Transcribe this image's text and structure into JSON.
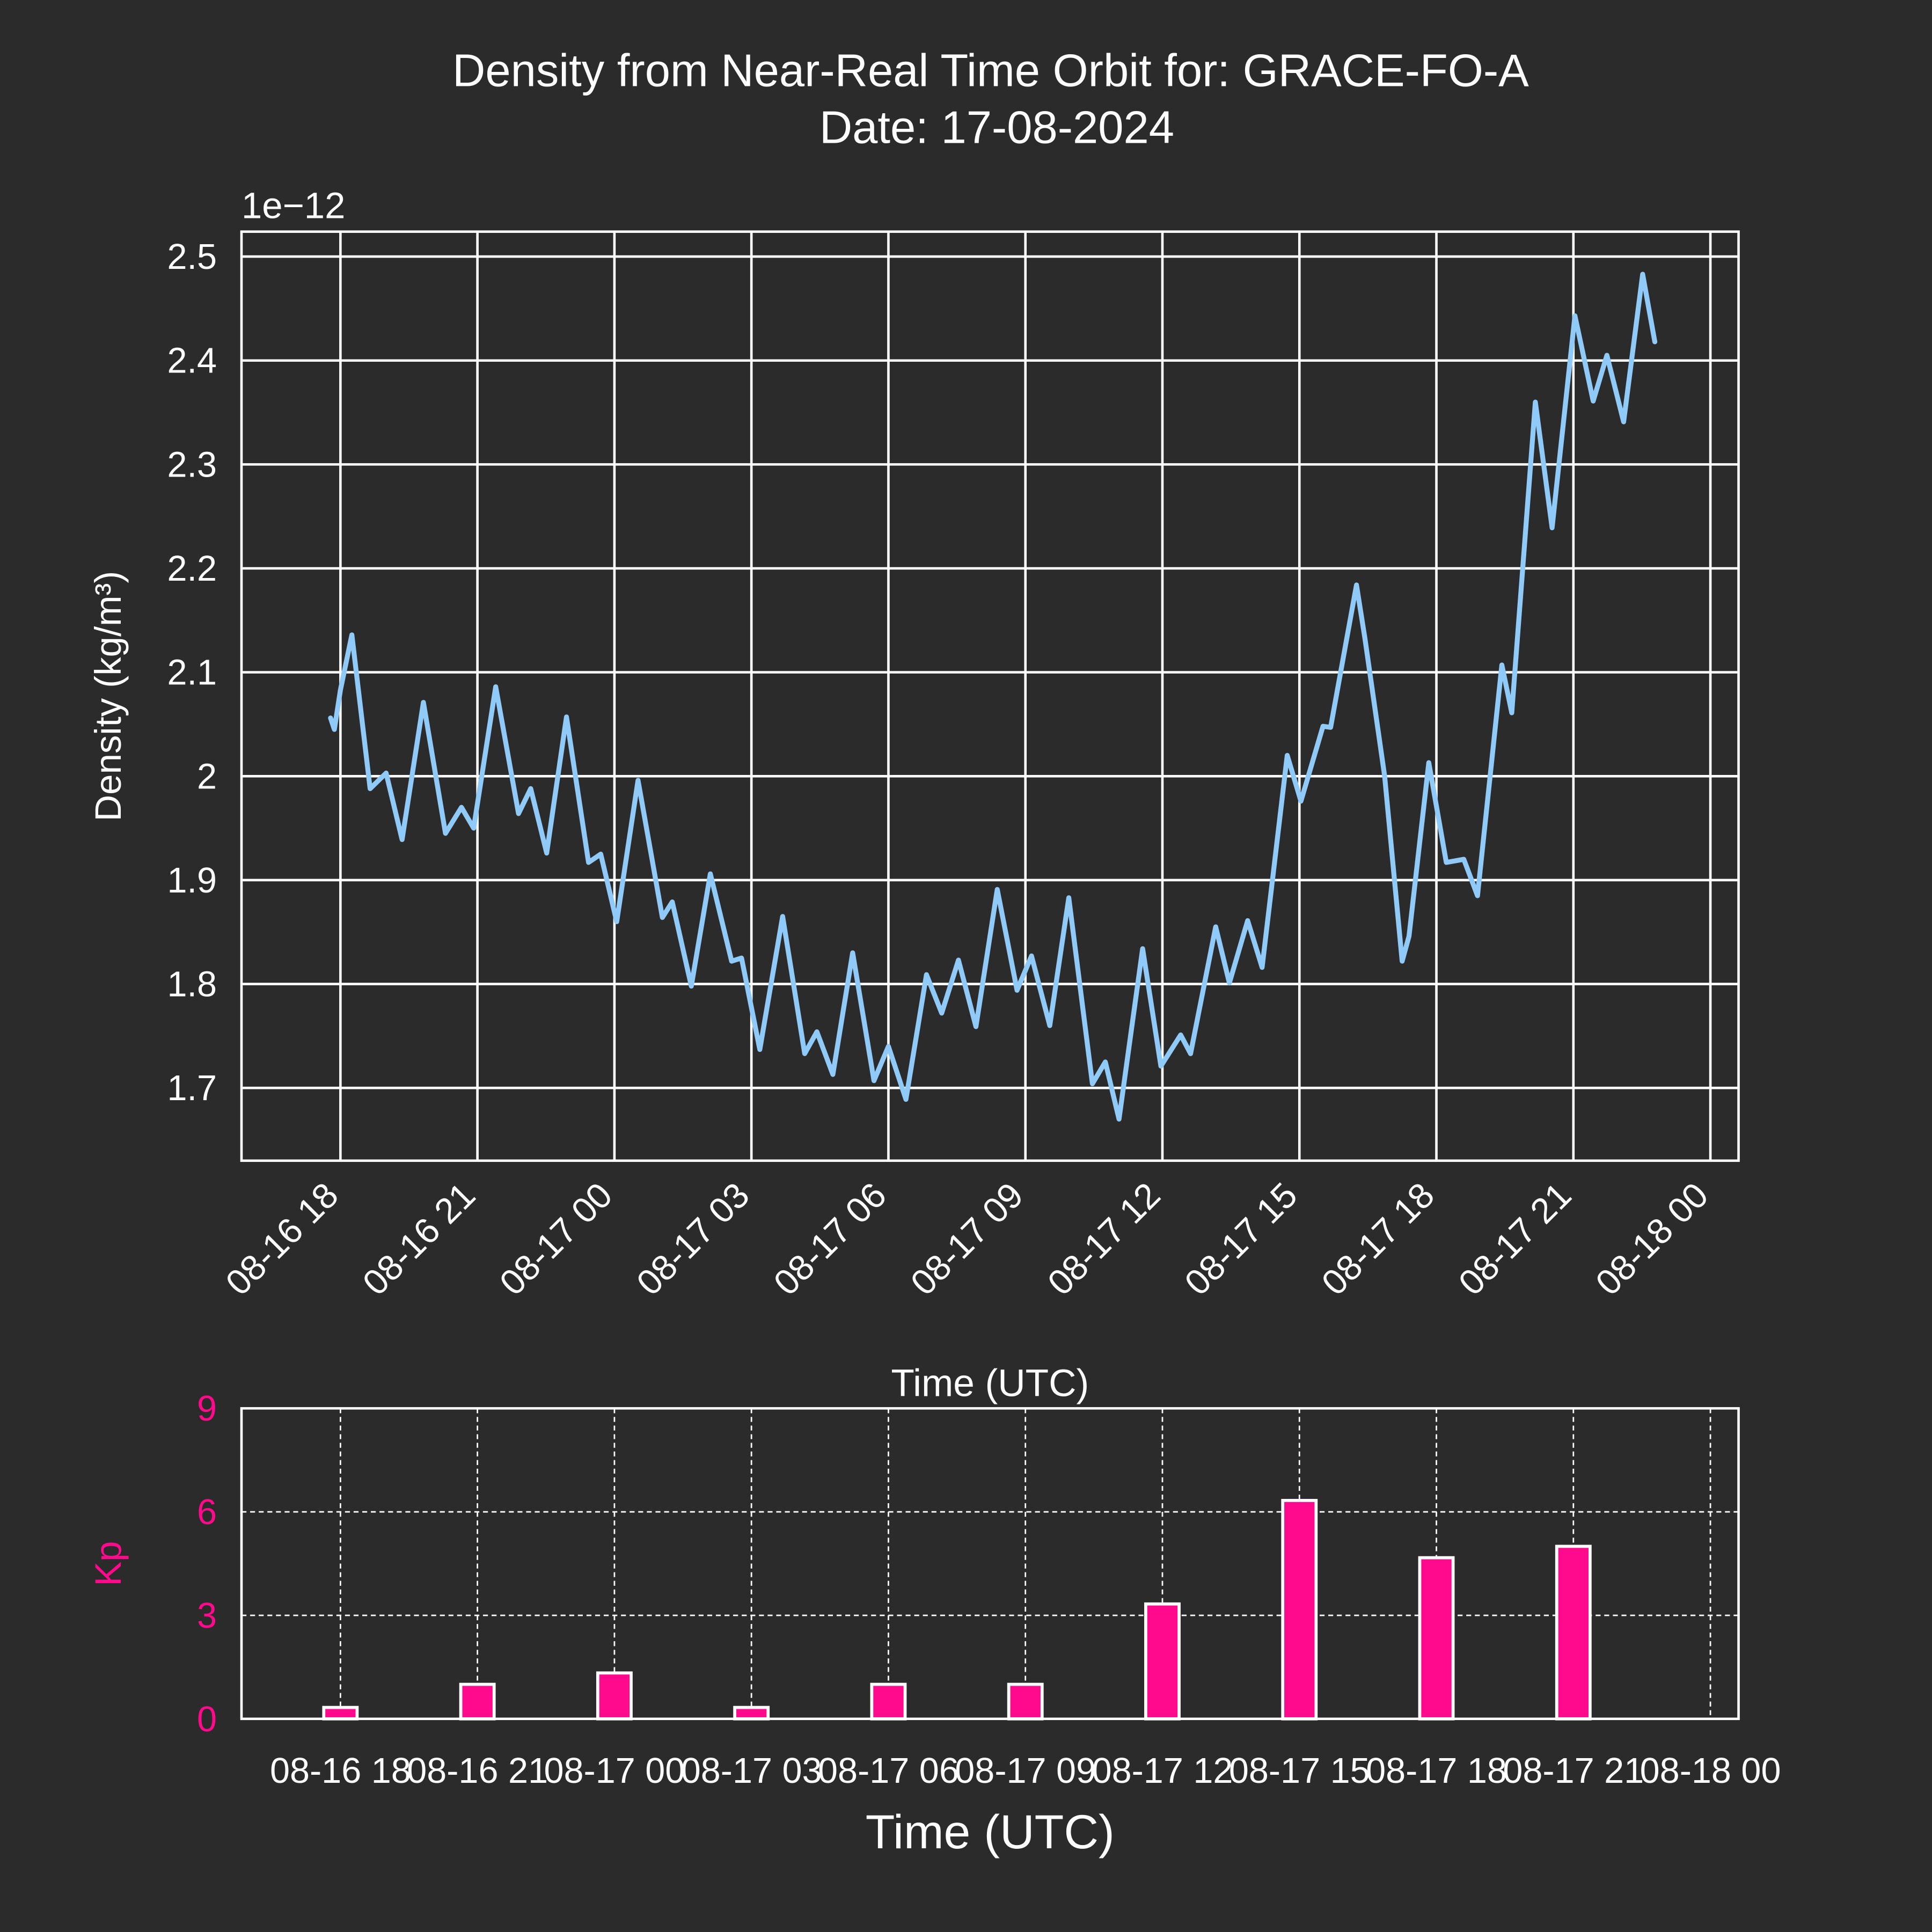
{
  "chart_data": [
    {
      "type": "line",
      "title": "Density from Near-Real Time Orbit for: GRACE-FO-A",
      "subtitle": "Date: 17-08-2024",
      "offset_label": "1e−12",
      "xlabel": "Time (UTC)",
      "ylabel": "Density (kg/m³)",
      "color": "#90caf9",
      "grid": true,
      "xlim": [
        "08-16 15:50",
        "08-18 00:37"
      ],
      "xticks": [
        "08-16 18",
        "08-16 21",
        "08-17 00",
        "08-17 03",
        "08-17 06",
        "08-17 09",
        "08-17 12",
        "08-17 15",
        "08-17 18",
        "08-17 21",
        "08-18 00"
      ],
      "ylim": [
        1.63,
        2.524
      ],
      "yticks": [
        1.7,
        1.8,
        1.9,
        2.0,
        2.1,
        2.2,
        2.3,
        2.4,
        2.5
      ],
      "x": [
        "08-16 17:47",
        "08-16 17:52",
        "08-16 18:00",
        "08-16 18:15",
        "08-16 18:39",
        "08-16 19:00",
        "08-16 19:21",
        "08-16 19:49",
        "08-16 20:18",
        "08-16 20:39",
        "08-16 20:55",
        "08-16 21:24",
        "08-16 21:54",
        "08-16 22:10",
        "08-16 22:31",
        "08-16 22:57",
        "08-16 23:26",
        "08-16 23:42",
        "08-17 00:03",
        "08-17 00:31",
        "08-17 01:03",
        "08-17 01:16",
        "08-17 01:41",
        "08-17 02:06",
        "08-17 02:34",
        "08-17 02:47",
        "08-17 03:11",
        "08-17 03:41",
        "08-17 04:10",
        "08-17 04:26",
        "08-17 04:47",
        "08-17 05:13",
        "08-17 05:41",
        "08-17 06:00",
        "08-17 06:23",
        "08-17 06:50",
        "08-17 07:10",
        "08-17 07:32",
        "08-17 07:55",
        "08-17 08:23",
        "08-17 08:49",
        "08-17 09:08",
        "08-17 09:32",
        "08-17 09:57",
        "08-17 10:28",
        "08-17 10:45",
        "08-17 11:03",
        "08-17 11:34",
        "08-17 11:58",
        "08-17 12:24",
        "08-17 12:37",
        "08-17 13:10",
        "08-17 13:28",
        "08-17 13:52",
        "08-17 14:11",
        "08-17 14:44",
        "08-17 15:02",
        "08-17 15:31",
        "08-17 15:41",
        "08-17 16:15",
        "08-17 16:26",
        "08-17 16:52",
        "08-17 17:15",
        "08-17 17:24",
        "08-17 17:50",
        "08-17 18:13",
        "08-17 18:36",
        "08-17 18:54",
        "08-17 19:26",
        "08-17 19:39",
        "08-17 20:10",
        "08-17 20:32",
        "08-17 21:02",
        "08-17 21:26",
        "08-17 21:44",
        "08-17 22:06",
        "08-17 22:31",
        "08-17 22:47"
      ],
      "values": [
        2.056,
        2.045,
        2.083,
        2.136,
        1.988,
        2.003,
        1.939,
        2.071,
        1.945,
        1.97,
        1.95,
        2.086,
        1.964,
        1.988,
        1.926,
        2.057,
        1.917,
        1.925,
        1.86,
        1.996,
        1.864,
        1.879,
        1.798,
        1.906,
        1.822,
        1.825,
        1.737,
        1.865,
        1.733,
        1.754,
        1.713,
        1.83,
        1.707,
        1.74,
        1.689,
        1.809,
        1.772,
        1.823,
        1.759,
        1.891,
        1.794,
        1.827,
        1.76,
        1.883,
        1.704,
        1.725,
        1.67,
        1.834,
        1.721,
        1.751,
        1.733,
        1.855,
        1.801,
        1.861,
        1.816,
        2.02,
        1.976,
        2.048,
        2.047,
        2.184,
        2.133,
        2.0,
        1.822,
        1.846,
        2.013,
        1.917,
        1.92,
        1.885,
        2.107,
        2.061,
        2.36,
        2.239,
        2.443,
        2.361,
        2.405,
        2.341,
        2.483,
        2.418
      ]
    },
    {
      "type": "bar",
      "xlabel": "Time (UTC)",
      "ylabel": "Kp",
      "color": "#ff0a8c",
      "axis_color": "#ff0a8c",
      "grid": true,
      "xlim": [
        "08-16 15:50",
        "08-18 00:37"
      ],
      "xticks": [
        "08-16 18",
        "08-16 21",
        "08-17 00",
        "08-17 03",
        "08-17 06",
        "08-17 09",
        "08-17 12",
        "08-17 15",
        "08-17 18",
        "08-17 21",
        "08-18 00"
      ],
      "ylim": [
        0,
        9
      ],
      "yticks": [
        0,
        3,
        6,
        9
      ],
      "x": [
        "08-16 18",
        "08-16 21",
        "08-17 00",
        "08-17 03",
        "08-17 06",
        "08-17 09",
        "08-17 12",
        "08-17 15",
        "08-17 18",
        "08-17 21"
      ],
      "values": [
        0.33,
        1.0,
        1.33,
        0.33,
        1.0,
        1.0,
        3.33,
        6.33,
        4.67,
        5.0
      ]
    }
  ]
}
